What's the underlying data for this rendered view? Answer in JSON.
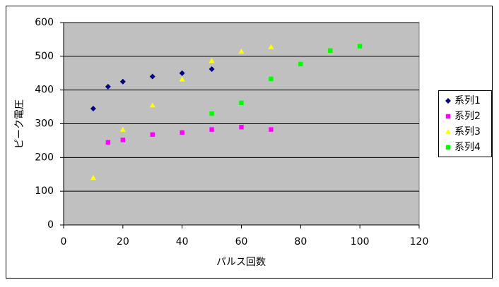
{
  "chart_data": {
    "type": "scatter",
    "x_label": "パルス回数",
    "y_label": "ピーク電圧",
    "xlim": [
      0,
      120
    ],
    "xticks": [
      0,
      20,
      40,
      60,
      80,
      100,
      120
    ],
    "ylim": [
      0,
      600
    ],
    "yticks": [
      0,
      100,
      200,
      300,
      400,
      500,
      600
    ],
    "grid": true,
    "legend": "right",
    "series": [
      {
        "name": "系列1",
        "color": "#000080",
        "marker": "diamond",
        "x": [
          10,
          15,
          20,
          30,
          40,
          50
        ],
        "values": [
          345,
          410,
          425,
          440,
          450,
          462
        ]
      },
      {
        "name": "系列2",
        "color": "#ff00ff",
        "marker": "square",
        "x": [
          15,
          20,
          30,
          40,
          50,
          60,
          70
        ],
        "values": [
          245,
          252,
          268,
          274,
          283,
          290,
          283
        ]
      },
      {
        "name": "系列3",
        "color": "#ffff00",
        "marker": "triangle",
        "x": [
          10,
          20,
          30,
          40,
          50,
          60,
          70
        ],
        "values": [
          140,
          283,
          355,
          432,
          487,
          515,
          528
        ]
      },
      {
        "name": "系列4",
        "color": "#00ff00",
        "marker": "square",
        "x": [
          50,
          60,
          70,
          80,
          90,
          100
        ],
        "values": [
          330,
          362,
          433,
          477,
          517,
          530
        ]
      }
    ]
  }
}
